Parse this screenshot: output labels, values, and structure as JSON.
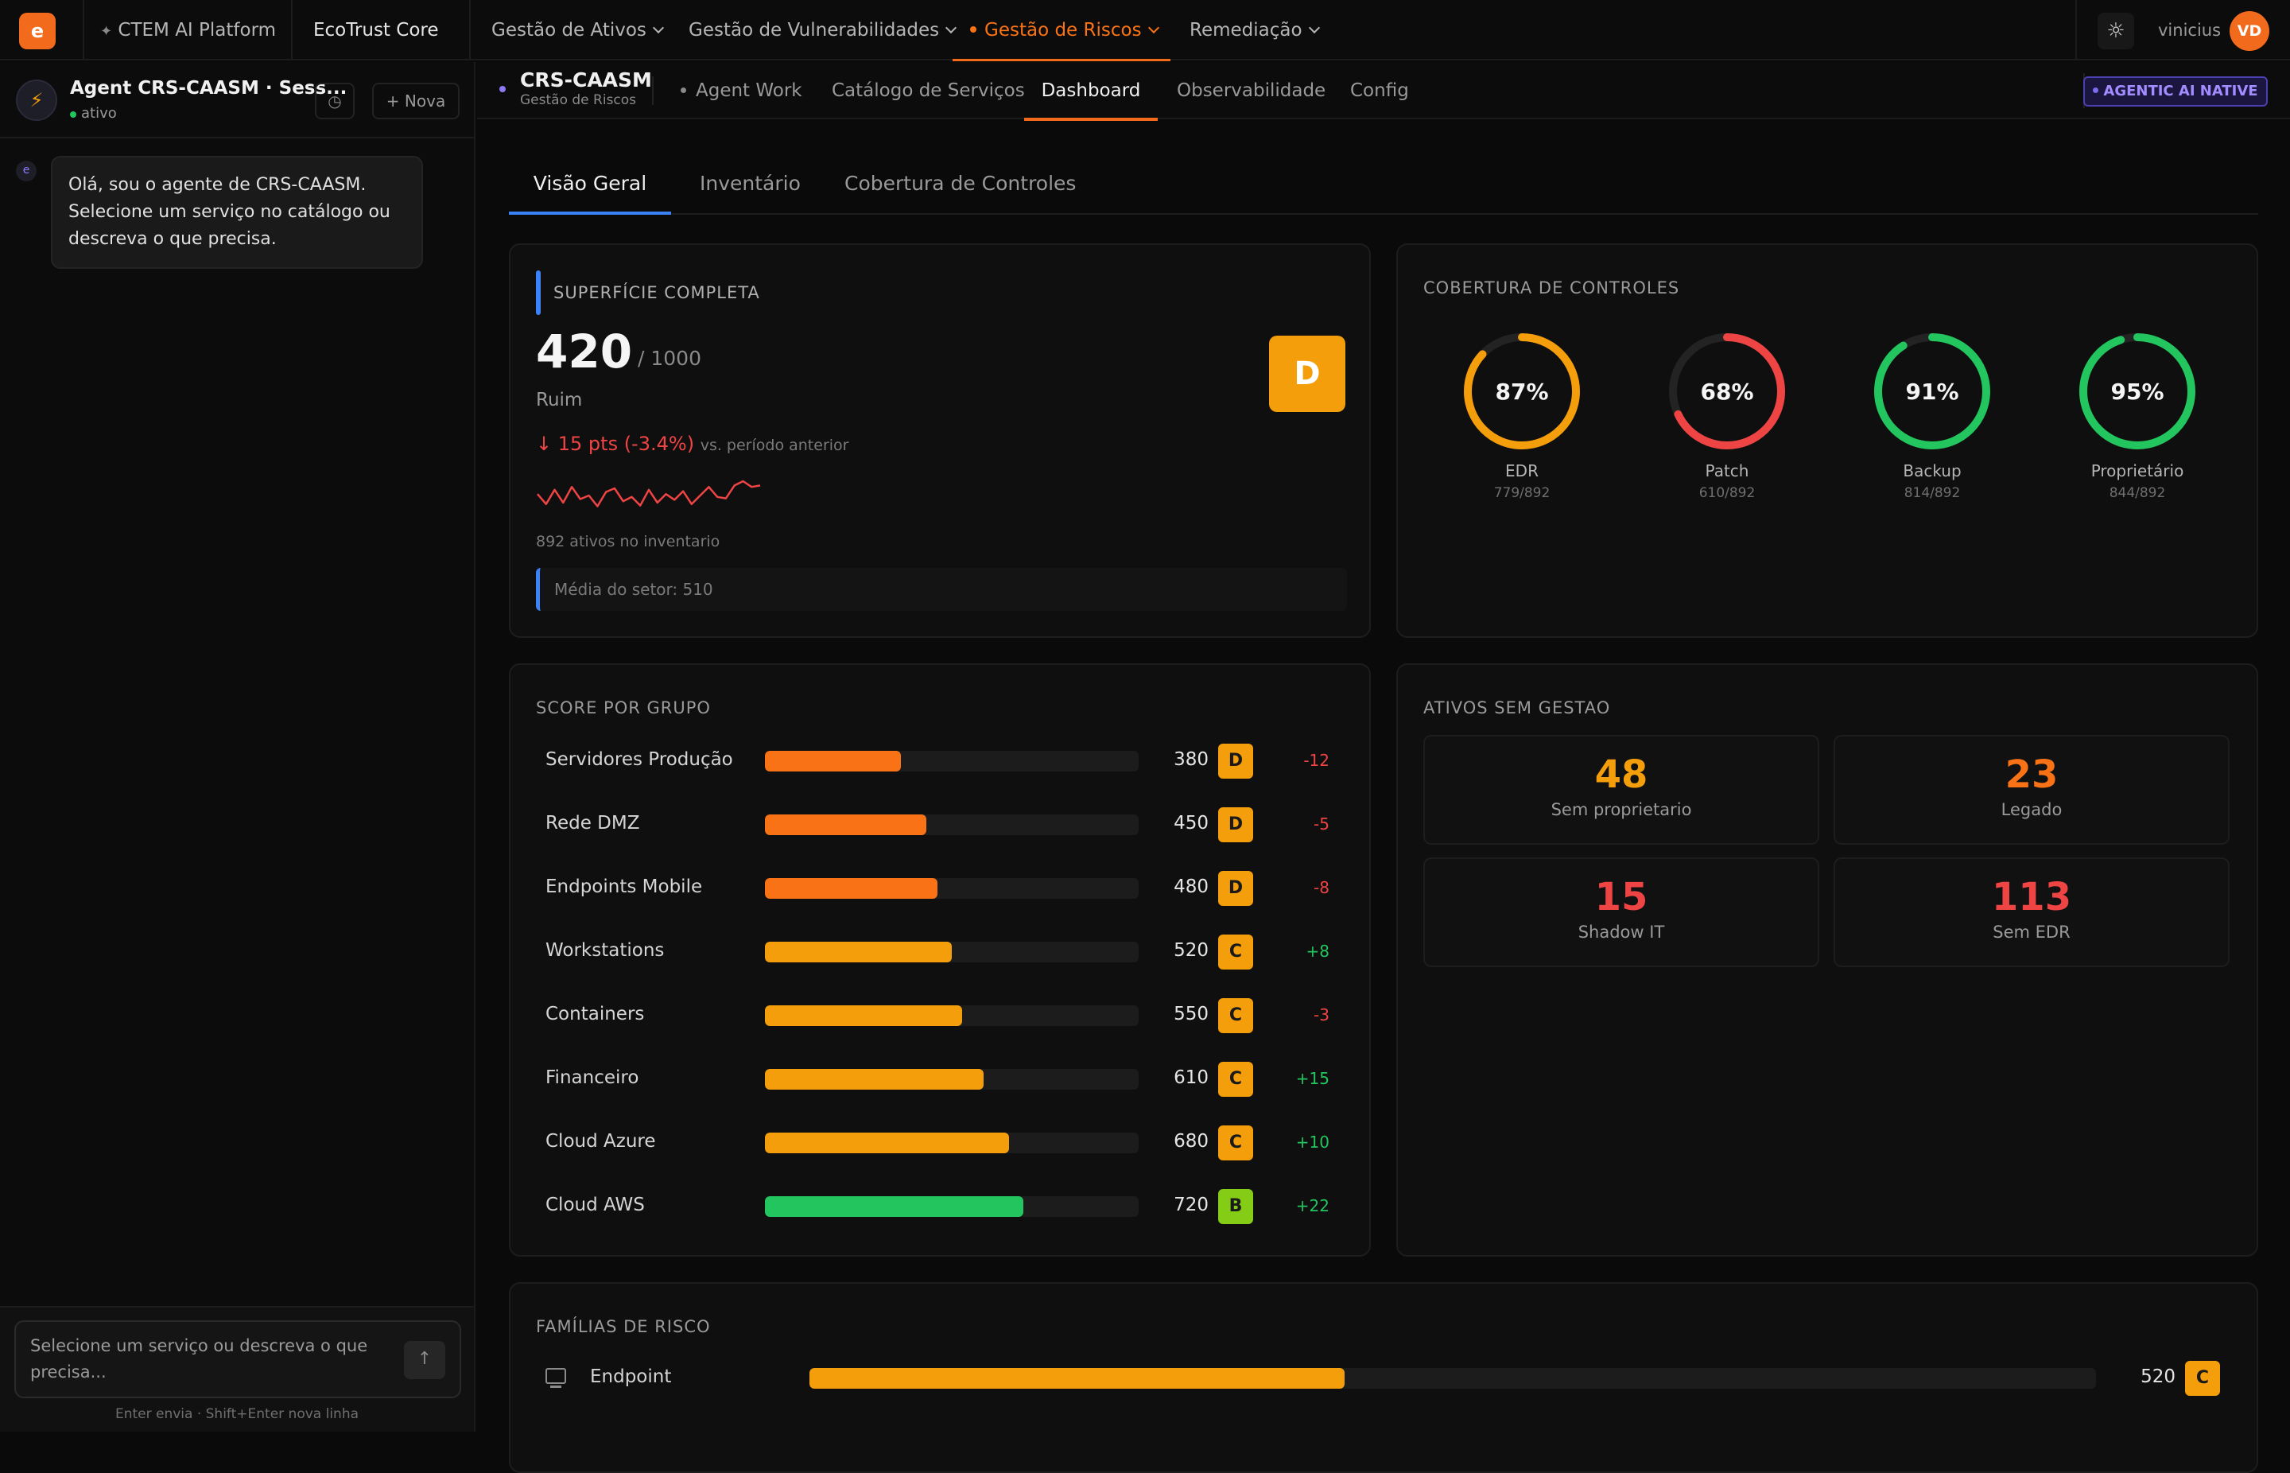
{
  "topbar": {
    "logo": "e",
    "platform": "CTEM AI Platform",
    "core": "EcoTrust Core",
    "nav": [
      "Gestão de Ativos",
      "Gestão de Vulnerabilidades",
      "Gestão de Riscos",
      "Remediação"
    ],
    "active_nav": "Gestão de Riscos",
    "user": "vinicius",
    "avatar": "VD"
  },
  "sidebar": {
    "agent_title": "Agent CRS-CAASM · Sess...",
    "status": "ativo",
    "new_label": "Nova",
    "message_avatar": "e",
    "message": "Olá, sou o agente de CRS-CAASM. Selecione um serviço no catálogo ou descreva o que precisa.",
    "input_placeholder": "Selecione um serviço ou descreva o que precisa...",
    "hint": "Enter envia · Shift+Enter nova linha"
  },
  "subnav": {
    "title": "CRS-CAASM",
    "subtitle": "Gestão de Riscos",
    "tabs": [
      "Agent Work",
      "Catálogo de Serviços",
      "Dashboard",
      "Observabilidade",
      "Config"
    ],
    "active": "Dashboard",
    "badge": "AGENTIC AI NATIVE"
  },
  "tabs": [
    "Visão Geral",
    "Inventário",
    "Cobertura de Controles"
  ],
  "active_tab": "Visão Geral",
  "surface": {
    "title": "SUPERFÍCIE COMPLETA",
    "score": "420",
    "max": "/ 1000",
    "rating": "Ruim",
    "grade": "D",
    "delta": "15 pts (-3.4%)",
    "delta_note": "vs. período anterior",
    "trend": [
      52,
      38,
      58,
      40,
      62,
      45,
      50,
      35,
      55,
      60,
      42,
      48,
      36,
      58,
      40,
      52,
      44,
      56,
      38,
      50,
      62,
      48,
      46,
      64,
      70,
      62,
      64
    ],
    "assets": "892 ativos no inventario",
    "sector_avg": "Média do setor: 510",
    "colors": {
      "accent": "#f26b1d",
      "negative": "#ef4444"
    }
  },
  "coverage": {
    "title": "COBERTURA DE CONTROLES",
    "items": [
      {
        "label": "EDR",
        "pct": 87,
        "pct_label": "87%",
        "count": "779/892",
        "color": "#f59e0b"
      },
      {
        "label": "Patch",
        "pct": 68,
        "pct_label": "68%",
        "count": "610/892",
        "color": "#ef4444"
      },
      {
        "label": "Backup",
        "pct": 91,
        "pct_label": "91%",
        "count": "814/892",
        "color": "#22c55e"
      },
      {
        "label": "Proprietário",
        "pct": 95,
        "pct_label": "95%",
        "count": "844/892",
        "color": "#22c55e"
      }
    ]
  },
  "groups": {
    "title": "SCORE POR GRUPO",
    "rows": [
      {
        "name": "Servidores Produção",
        "score": 380,
        "score_label": "380",
        "grade": "D",
        "delta": "-12",
        "color": "#f97316",
        "grade_color": "#f59e0b",
        "delta_color": "#ef4444"
      },
      {
        "name": "Rede DMZ",
        "score": 450,
        "score_label": "450",
        "grade": "D",
        "delta": "-5",
        "color": "#f97316",
        "grade_color": "#f59e0b",
        "delta_color": "#ef4444"
      },
      {
        "name": "Endpoints Mobile",
        "score": 480,
        "score_label": "480",
        "grade": "D",
        "delta": "-8",
        "color": "#f97316",
        "grade_color": "#f59e0b",
        "delta_color": "#ef4444"
      },
      {
        "name": "Workstations",
        "score": 520,
        "score_label": "520",
        "grade": "C",
        "delta": "+8",
        "color": "#f59e0b",
        "grade_color": "#f59e0b",
        "delta_color": "#22c55e"
      },
      {
        "name": "Containers",
        "score": 550,
        "score_label": "550",
        "grade": "C",
        "delta": "-3",
        "color": "#f59e0b",
        "grade_color": "#f59e0b",
        "delta_color": "#ef4444"
      },
      {
        "name": "Financeiro",
        "score": 610,
        "score_label": "610",
        "grade": "C",
        "delta": "+15",
        "color": "#f59e0b",
        "grade_color": "#f59e0b",
        "delta_color": "#22c55e"
      },
      {
        "name": "Cloud Azure",
        "score": 680,
        "score_label": "680",
        "grade": "C",
        "delta": "+10",
        "color": "#f59e0b",
        "grade_color": "#f59e0b",
        "delta_color": "#22c55e"
      },
      {
        "name": "Cloud AWS",
        "score": 720,
        "score_label": "720",
        "grade": "B",
        "delta": "+22",
        "color": "#22c55e",
        "grade_color": "#84cc16",
        "delta_color": "#22c55e"
      }
    ]
  },
  "unmanaged": {
    "title": "ATIVOS SEM GESTAO",
    "tiles": [
      {
        "value": "48",
        "label": "Sem proprietario",
        "color": "#f59e0b"
      },
      {
        "value": "23",
        "label": "Legado",
        "color": "#f97316"
      },
      {
        "value": "15",
        "label": "Shadow IT",
        "color": "#ef4444"
      },
      {
        "value": "113",
        "label": "Sem EDR",
        "color": "#ef4444"
      }
    ]
  },
  "families": {
    "title": "FAMÍLIAS DE RISCO",
    "rows": [
      {
        "name": "Endpoint",
        "score": 520,
        "score_label": "520",
        "grade": "C",
        "icon": "monitor-icon",
        "color": "#f59e0b"
      }
    ]
  }
}
